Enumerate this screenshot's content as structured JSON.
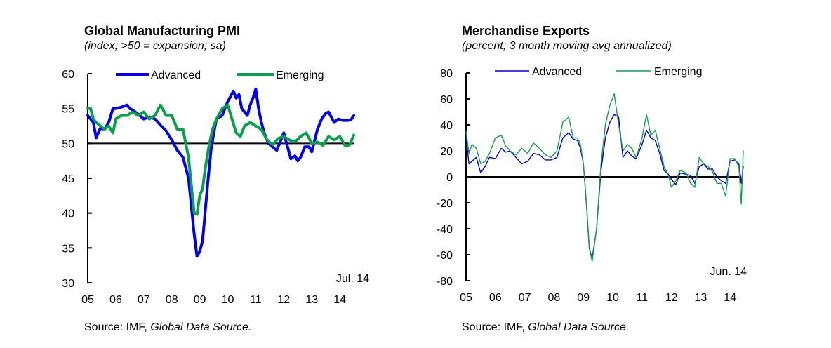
{
  "chart_data": [
    {
      "type": "line",
      "title": "Global Manufacturing PMI",
      "subtitle": "(index; >50 = expansion; sa)",
      "xlabel": "",
      "ylabel": "",
      "ylim": [
        30,
        60
      ],
      "yticks": [
        30,
        35,
        40,
        45,
        50,
        55,
        60
      ],
      "xticks": [
        "05",
        "06",
        "07",
        "08",
        "09",
        "10",
        "11",
        "12",
        "13",
        "14"
      ],
      "xrange_years": [
        2005.0,
        2014.5
      ],
      "reference_line": 50,
      "annotation": "Jul. 14",
      "legend": {
        "placement": "top",
        "entries": [
          "Advanced",
          "Emerging"
        ]
      },
      "grid": false,
      "source_prefix": "Source: IMF, ",
      "source_italic": "Global Data Source.",
      "series": [
        {
          "name": "Advanced",
          "color": "#0000ee",
          "x": [
            2005.0,
            2005.1,
            2005.2,
            2005.3,
            2005.45,
            2005.6,
            2005.75,
            2005.9,
            2006.0,
            2006.2,
            2006.4,
            2006.5,
            2006.6,
            2006.8,
            2007.0,
            2007.2,
            2007.4,
            2007.6,
            2007.8,
            2008.0,
            2008.2,
            2008.4,
            2008.6,
            2008.7,
            2008.8,
            2008.9,
            2009.0,
            2009.1,
            2009.2,
            2009.3,
            2009.4,
            2009.5,
            2009.6,
            2009.8,
            2010.0,
            2010.2,
            2010.3,
            2010.4,
            2010.5,
            2010.6,
            2010.7,
            2010.8,
            2010.9,
            2011.0,
            2011.1,
            2011.2,
            2011.3,
            2011.45,
            2011.6,
            2011.75,
            2011.9,
            2012.0,
            2012.1,
            2012.25,
            2012.4,
            2012.5,
            2012.6,
            2012.75,
            2012.9,
            2013.0,
            2013.2,
            2013.35,
            2013.5,
            2013.6,
            2013.8,
            2013.95,
            2014.1,
            2014.2,
            2014.3,
            2014.4,
            2014.5
          ],
          "values": [
            54.0,
            53.5,
            53.0,
            50.8,
            52.2,
            52.0,
            53.0,
            55.0,
            55.0,
            55.2,
            55.5,
            55.0,
            54.8,
            54.2,
            53.5,
            53.8,
            53.5,
            52.6,
            51.8,
            50.5,
            49.0,
            48.0,
            45.0,
            41.0,
            37.0,
            33.8,
            34.5,
            36.0,
            40.5,
            45.0,
            49.0,
            51.5,
            53.5,
            54.0,
            56.0,
            57.5,
            56.5,
            57.0,
            55.0,
            54.5,
            54.0,
            55.5,
            56.5,
            57.8,
            55.0,
            53.0,
            51.5,
            50.0,
            49.5,
            49.0,
            50.5,
            51.5,
            50.0,
            47.8,
            48.2,
            47.5,
            48.0,
            49.5,
            49.5,
            48.8,
            52.0,
            53.5,
            54.3,
            54.5,
            53.0,
            53.5,
            53.3,
            53.3,
            53.3,
            53.4,
            54.0
          ]
        },
        {
          "name": "Emerging",
          "color": "#0aa04a",
          "x": [
            2005.0,
            2005.1,
            2005.2,
            2005.3,
            2005.45,
            2005.6,
            2005.75,
            2005.9,
            2006.0,
            2006.2,
            2006.4,
            2006.6,
            2006.8,
            2007.0,
            2007.2,
            2007.4,
            2007.6,
            2007.8,
            2008.0,
            2008.2,
            2008.4,
            2008.6,
            2008.7,
            2008.8,
            2008.9,
            2009.0,
            2009.1,
            2009.2,
            2009.3,
            2009.45,
            2009.6,
            2009.8,
            2010.0,
            2010.15,
            2010.3,
            2010.45,
            2010.6,
            2010.8,
            2011.0,
            2011.2,
            2011.4,
            2011.6,
            2011.8,
            2012.0,
            2012.2,
            2012.4,
            2012.6,
            2012.8,
            2013.0,
            2013.2,
            2013.4,
            2013.6,
            2013.8,
            2014.0,
            2014.2,
            2014.35,
            2014.5
          ],
          "values": [
            55.0,
            55.0,
            53.5,
            53.0,
            52.5,
            52.0,
            52.5,
            51.5,
            53.5,
            54.0,
            54.0,
            54.5,
            54.0,
            54.5,
            53.5,
            54.0,
            55.5,
            54.0,
            54.0,
            52.0,
            52.0,
            48.0,
            44.0,
            40.0,
            39.8,
            42.5,
            43.5,
            46.5,
            49.0,
            52.0,
            53.5,
            55.0,
            55.5,
            53.5,
            51.5,
            51.0,
            52.5,
            53.0,
            52.5,
            52.0,
            50.5,
            49.8,
            50.7,
            51.0,
            50.5,
            50.2,
            51.0,
            51.5,
            50.0,
            50.2,
            49.7,
            51.0,
            50.5,
            51.0,
            49.6,
            49.8,
            51.2
          ]
        }
      ]
    },
    {
      "type": "line",
      "title": "Merchandise Exports",
      "subtitle": "(percent; 3 month moving avg annualized)",
      "xlabel": "",
      "ylabel": "",
      "ylim": [
        -80,
        80
      ],
      "yticks": [
        -80,
        -60,
        -40,
        -20,
        0,
        20,
        40,
        60,
        80
      ],
      "xticks": [
        "05",
        "06",
        "07",
        "08",
        "09",
        "10",
        "11",
        "12",
        "13",
        "14"
      ],
      "xrange_years": [
        2005.0,
        2014.45
      ],
      "reference_line": 0,
      "annotation": "Jun. 14",
      "legend": {
        "placement": "top",
        "entries": [
          "Advanced",
          "Emerging"
        ]
      },
      "grid": false,
      "source_prefix": "Source: IMF, ",
      "source_italic": "Global Data Source.",
      "series": [
        {
          "name": "Advanced",
          "color": "#0000cc",
          "x": [
            2005.0,
            2005.1,
            2005.2,
            2005.35,
            2005.5,
            2005.65,
            2005.8,
            2006.0,
            2006.2,
            2006.35,
            2006.5,
            2006.7,
            2006.9,
            2007.1,
            2007.3,
            2007.5,
            2007.7,
            2007.9,
            2008.1,
            2008.3,
            2008.5,
            2008.65,
            2008.8,
            2008.9,
            2009.0,
            2009.1,
            2009.2,
            2009.3,
            2009.45,
            2009.6,
            2009.75,
            2009.9,
            2010.05,
            2010.2,
            2010.35,
            2010.5,
            2010.65,
            2010.8,
            2011.0,
            2011.15,
            2011.3,
            2011.45,
            2011.6,
            2011.75,
            2011.9,
            2012.0,
            2012.15,
            2012.3,
            2012.5,
            2012.65,
            2012.8,
            2012.95,
            2013.1,
            2013.25,
            2013.4,
            2013.55,
            2013.7,
            2013.85,
            2014.0,
            2014.15,
            2014.3,
            2014.38,
            2014.45
          ],
          "values": [
            30,
            10,
            12,
            15,
            3,
            8,
            15,
            14,
            22,
            19,
            20,
            15,
            10,
            12,
            18,
            17,
            13,
            13,
            15,
            30,
            34,
            29,
            28,
            22,
            10,
            -20,
            -55,
            -63,
            -40,
            5,
            30,
            42,
            48,
            46,
            15,
            20,
            16,
            14,
            25,
            36,
            30,
            28,
            18,
            5,
            2,
            -2,
            -6,
            3,
            2,
            1,
            -5,
            8,
            10,
            6,
            6,
            0,
            -3,
            -5,
            12,
            13,
            10,
            -5,
            8
          ]
        },
        {
          "name": "Emerging",
          "color": "#1a9a50",
          "x": [
            2005.0,
            2005.1,
            2005.2,
            2005.35,
            2005.5,
            2005.65,
            2005.8,
            2006.0,
            2006.2,
            2006.35,
            2006.5,
            2006.7,
            2006.9,
            2007.1,
            2007.3,
            2007.5,
            2007.7,
            2007.9,
            2008.1,
            2008.3,
            2008.5,
            2008.65,
            2008.8,
            2008.9,
            2009.0,
            2009.1,
            2009.2,
            2009.3,
            2009.45,
            2009.6,
            2009.75,
            2009.9,
            2010.05,
            2010.2,
            2010.35,
            2010.5,
            2010.65,
            2010.8,
            2011.0,
            2011.15,
            2011.3,
            2011.45,
            2011.6,
            2011.75,
            2011.9,
            2012.0,
            2012.15,
            2012.3,
            2012.5,
            2012.65,
            2012.8,
            2012.95,
            2013.1,
            2013.25,
            2013.4,
            2013.55,
            2013.7,
            2013.85,
            2014.0,
            2014.15,
            2014.3,
            2014.38,
            2014.45
          ],
          "values": [
            35,
            18,
            25,
            22,
            10,
            12,
            18,
            30,
            32,
            24,
            20,
            17,
            22,
            18,
            26,
            22,
            17,
            15,
            20,
            42,
            46,
            30,
            30,
            25,
            10,
            -20,
            -55,
            -65,
            -40,
            10,
            40,
            55,
            64,
            40,
            20,
            25,
            22,
            15,
            30,
            48,
            32,
            36,
            22,
            8,
            1,
            -8,
            -3,
            5,
            3,
            -5,
            -8,
            15,
            10,
            8,
            4,
            -5,
            -5,
            -15,
            14,
            14,
            8,
            -21,
            20
          ]
        }
      ]
    }
  ]
}
